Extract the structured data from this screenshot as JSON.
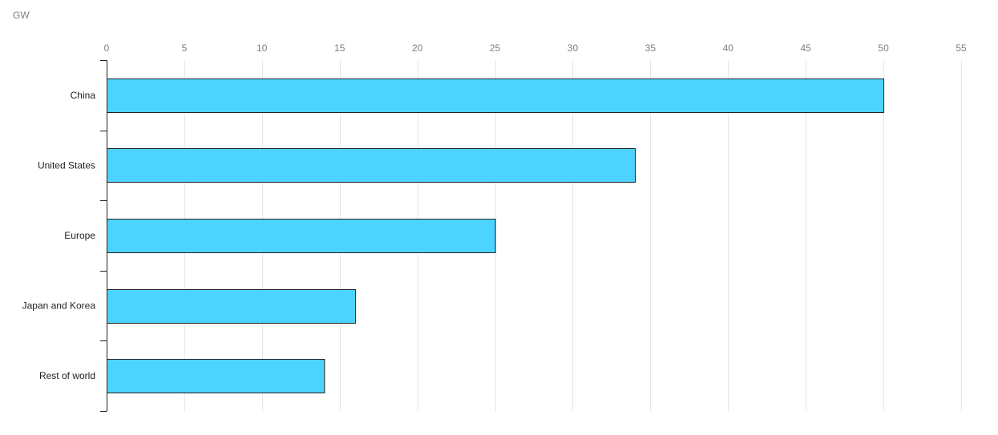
{
  "chart_data": {
    "type": "bar",
    "orientation": "horizontal",
    "unit_label": "GW",
    "categories": [
      "China",
      "United States",
      "Europe",
      "Japan and Korea",
      "Rest of world"
    ],
    "values": [
      50,
      34,
      25,
      16,
      14
    ],
    "xlim": [
      0,
      55
    ],
    "xticks": [
      0,
      5,
      10,
      15,
      20,
      25,
      30,
      35,
      40,
      45,
      50,
      55
    ],
    "grid": true,
    "bar_color": "#4cd3ff",
    "bar_outline_color": "#222222"
  }
}
